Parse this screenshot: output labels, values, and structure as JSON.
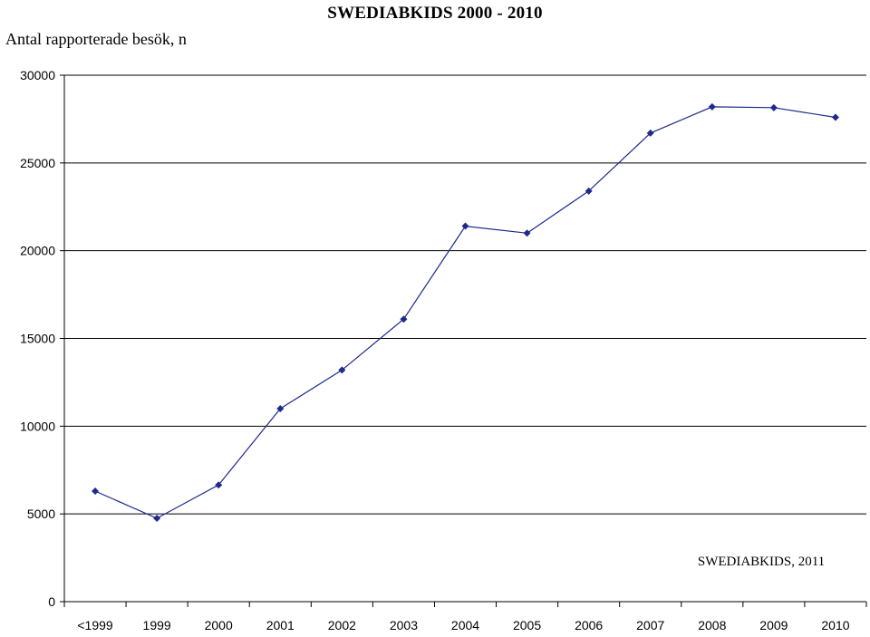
{
  "chart_data": {
    "type": "line",
    "title": "SWEDIABKIDS 2000 - 2010",
    "ylabel": "Antal  rapporterade besök, n",
    "xlabel": "",
    "categories": [
      "<1999",
      "1999",
      "2000",
      "2001",
      "2002",
      "2003",
      "2004",
      "2005",
      "2006",
      "2007",
      "2008",
      "2009",
      "2010"
    ],
    "series": [
      {
        "values": [
          6300,
          4750,
          6650,
          11000,
          13200,
          16100,
          21400,
          21000,
          23400,
          26700,
          28200,
          28150,
          27600
        ]
      }
    ],
    "ylim": [
      0,
      30000
    ],
    "yticks": [
      0,
      5000,
      10000,
      15000,
      20000,
      25000,
      30000
    ],
    "grid": true,
    "line_color": "#1F2A8C",
    "marker": "diamond",
    "annotation": "SWEDIABKIDS, 2011"
  }
}
